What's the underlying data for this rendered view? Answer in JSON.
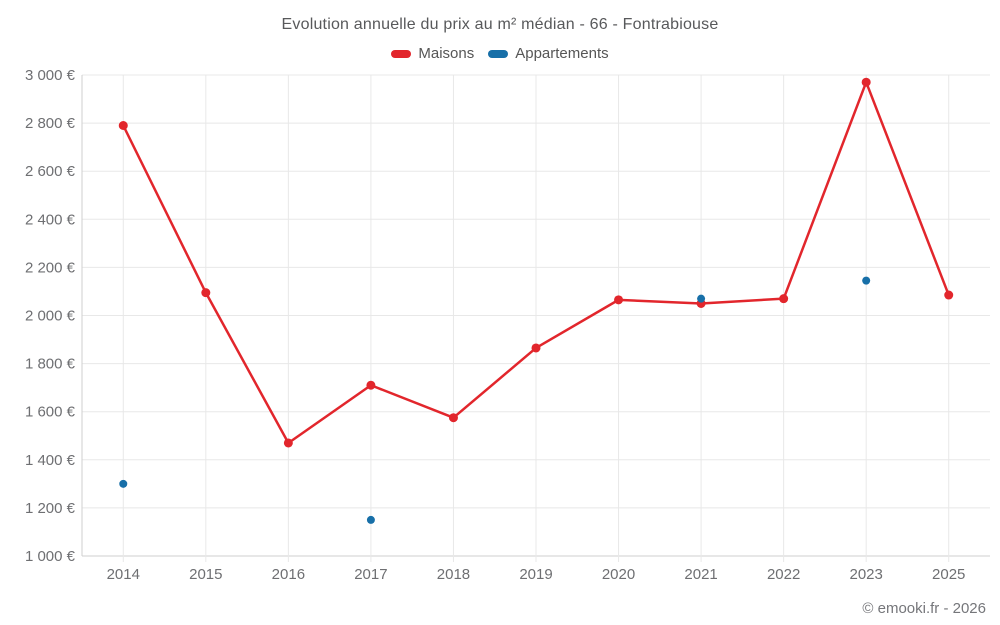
{
  "header": {
    "title": "Evolution annuelle du prix au m² médian - 66 - Fontrabiouse"
  },
  "footer": {
    "credit": "© emooki.fr - 2026"
  },
  "chart_data": {
    "type": "line",
    "title": "Evolution annuelle du prix au m² médian - 66 - Fontrabiouse",
    "categories": [
      "2014",
      "2015",
      "2016",
      "2017",
      "2018",
      "2019",
      "2020",
      "2021",
      "2022",
      "2023",
      "2025"
    ],
    "series": [
      {
        "name": "Maisons",
        "color": "#e2262c",
        "draw_line": true,
        "marker_radius": 4.5,
        "values": [
          2790,
          2095,
          1470,
          1710,
          1575,
          1865,
          2065,
          2050,
          2070,
          2970,
          2085
        ]
      },
      {
        "name": "Appartements",
        "color": "#176fa8",
        "draw_line": true,
        "marker_radius": 4,
        "values": [
          1300,
          null,
          null,
          1150,
          null,
          null,
          null,
          2070,
          null,
          2145,
          null
        ]
      }
    ],
    "ylim": [
      1000,
      3000
    ],
    "ytick_step": 200,
    "ytick_suffix": "€",
    "grid": true,
    "legend_position": "top",
    "colors": {
      "gridline": "#e8e8e8",
      "axisline": "#cfcfcf",
      "tick_text": "#6e6f72"
    }
  }
}
